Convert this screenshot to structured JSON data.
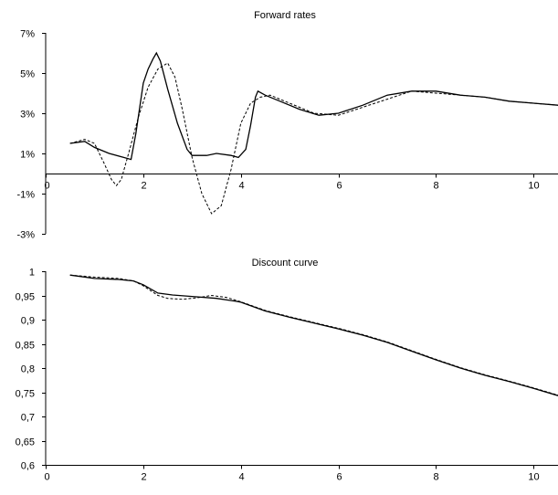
{
  "chart_data": [
    {
      "type": "line",
      "title": "Forward rates",
      "xlabel": "",
      "ylabel": "",
      "xlim": [
        0,
        10.5
      ],
      "ylim": [
        -3,
        7
      ],
      "x_ticks": [
        0,
        2,
        4,
        6,
        8,
        10
      ],
      "y_ticks": [
        -3,
        -1,
        1,
        3,
        5,
        7
      ],
      "y_tick_labels": [
        "-3%",
        "-1%",
        "1%",
        "3%",
        "5%",
        "7%"
      ],
      "x_axis_at_y": 0,
      "grid": false,
      "series": [
        {
          "style": "solid",
          "x": [
            0.5,
            0.8,
            1.0,
            1.3,
            1.6,
            1.75,
            1.85,
            2.0,
            2.1,
            2.2,
            2.27,
            2.35,
            2.5,
            2.7,
            2.9,
            3.0,
            3.3,
            3.5,
            3.8,
            3.95,
            4.1,
            4.2,
            4.3,
            4.35,
            4.5,
            4.8,
            5.2,
            5.6,
            6.0,
            6.5,
            7.0,
            7.5,
            8.0,
            8.5,
            9.0,
            9.5,
            10.0,
            10.5
          ],
          "y": [
            1.5,
            1.6,
            1.3,
            1.0,
            0.8,
            0.7,
            2.0,
            4.5,
            5.2,
            5.7,
            6.0,
            5.6,
            4.2,
            2.5,
            1.2,
            0.9,
            0.9,
            1.0,
            0.9,
            0.8,
            1.2,
            2.4,
            3.8,
            4.1,
            3.9,
            3.6,
            3.2,
            2.9,
            3.0,
            3.4,
            3.9,
            4.1,
            4.1,
            3.9,
            3.8,
            3.6,
            3.5,
            3.4
          ]
        },
        {
          "style": "dashed",
          "x": [
            0.5,
            0.8,
            1.0,
            1.2,
            1.35,
            1.45,
            1.55,
            1.7,
            1.9,
            2.1,
            2.3,
            2.5,
            2.65,
            2.8,
            3.0,
            3.2,
            3.4,
            3.6,
            3.8,
            4.0,
            4.2,
            4.4,
            4.6,
            5.0,
            5.5,
            6.0,
            6.5,
            7.0,
            7.5,
            8.0,
            8.5,
            9.0,
            9.5,
            10.0,
            10.5
          ],
          "y": [
            1.5,
            1.7,
            1.5,
            0.5,
            -0.3,
            -0.6,
            -0.3,
            1.0,
            2.8,
            4.3,
            5.2,
            5.5,
            4.8,
            3.2,
            0.8,
            -1.0,
            -2.0,
            -1.6,
            0.2,
            2.5,
            3.5,
            3.8,
            3.9,
            3.5,
            3.0,
            2.9,
            3.3,
            3.7,
            4.1,
            4.0,
            3.9,
            3.8,
            3.6,
            3.5,
            3.4
          ]
        }
      ]
    },
    {
      "type": "line",
      "title": "Discount curve",
      "xlabel": "",
      "ylabel": "",
      "xlim": [
        0,
        10.5
      ],
      "ylim": [
        0.6,
        1
      ],
      "x_ticks": [
        0,
        2,
        4,
        6,
        8,
        10
      ],
      "y_ticks": [
        0.6,
        0.65,
        0.7,
        0.75,
        0.8,
        0.85,
        0.9,
        0.95,
        1
      ],
      "y_tick_labels": [
        "0,6",
        "0,65",
        "0,7",
        "0,75",
        "0,8",
        "0,85",
        "0,9",
        "0,95",
        "1"
      ],
      "grid": false,
      "series": [
        {
          "style": "solid",
          "x": [
            0.5,
            1.0,
            1.5,
            1.8,
            2.0,
            2.3,
            2.6,
            3.0,
            3.5,
            3.9,
            4.0,
            4.5,
            5.0,
            5.5,
            6.0,
            6.5,
            7.0,
            7.5,
            8.0,
            8.5,
            9.0,
            9.5,
            10.0,
            10.5
          ],
          "y": [
            0.992,
            0.985,
            0.983,
            0.98,
            0.972,
            0.955,
            0.951,
            0.948,
            0.944,
            0.938,
            0.936,
            0.918,
            0.905,
            0.893,
            0.881,
            0.868,
            0.853,
            0.835,
            0.817,
            0.8,
            0.785,
            0.772,
            0.758,
            0.743
          ]
        },
        {
          "style": "dashed",
          "x": [
            0.5,
            1.0,
            1.5,
            1.8,
            2.0,
            2.3,
            2.5,
            2.8,
            3.1,
            3.4,
            3.7,
            4.0,
            4.5,
            5.0,
            5.5,
            6.0,
            6.5,
            7.0,
            7.5,
            8.0,
            8.5,
            9.0,
            9.5,
            10.0,
            10.5
          ],
          "y": [
            0.992,
            0.988,
            0.985,
            0.98,
            0.97,
            0.95,
            0.944,
            0.942,
            0.945,
            0.95,
            0.946,
            0.937,
            0.919,
            0.906,
            0.894,
            0.882,
            0.869,
            0.854,
            0.836,
            0.818,
            0.801,
            0.786,
            0.773,
            0.759,
            0.744
          ]
        }
      ]
    }
  ]
}
